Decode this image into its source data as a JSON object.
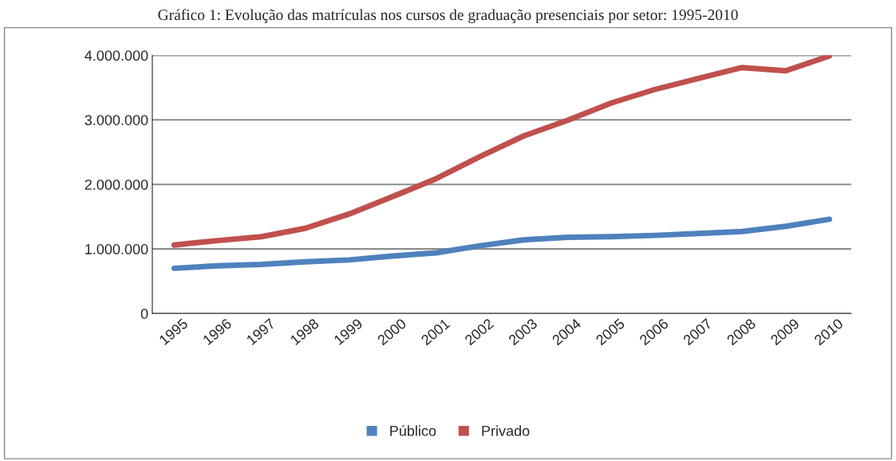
{
  "chart_data": {
    "type": "line",
    "title": "Gráfico 1: Evolução das matrículas nos cursos de graduação presenciais por setor: 1995-2010",
    "categories": [
      "1995",
      "1996",
      "1997",
      "1998",
      "1999",
      "2000",
      "2001",
      "2002",
      "2003",
      "2004",
      "2005",
      "2006",
      "2007",
      "2008",
      "2009",
      "2010"
    ],
    "series": [
      {
        "name": "Público",
        "color": "#4f81bd",
        "values": [
          700000,
          740000,
          760000,
          800000,
          830000,
          890000,
          940000,
          1050000,
          1140000,
          1180000,
          1190000,
          1210000,
          1240000,
          1270000,
          1350000,
          1460000
        ]
      },
      {
        "name": "Privado",
        "color": "#c0504d",
        "values": [
          1060000,
          1130000,
          1190000,
          1320000,
          1540000,
          1810000,
          2090000,
          2430000,
          2750000,
          2990000,
          3260000,
          3470000,
          3640000,
          3810000,
          3760000,
          3990000
        ]
      }
    ],
    "ylim": [
      0,
      4000000
    ],
    "yticks": [
      {
        "value": 0,
        "label": "0"
      },
      {
        "value": 1000000,
        "label": "1.000.000"
      },
      {
        "value": 2000000,
        "label": "2.000.000"
      },
      {
        "value": 3000000,
        "label": "3.000.000"
      },
      {
        "value": 4000000,
        "label": "4.000.000"
      }
    ],
    "grid": "y",
    "legend": "bottom",
    "marker": "none",
    "line_style": "solid"
  }
}
